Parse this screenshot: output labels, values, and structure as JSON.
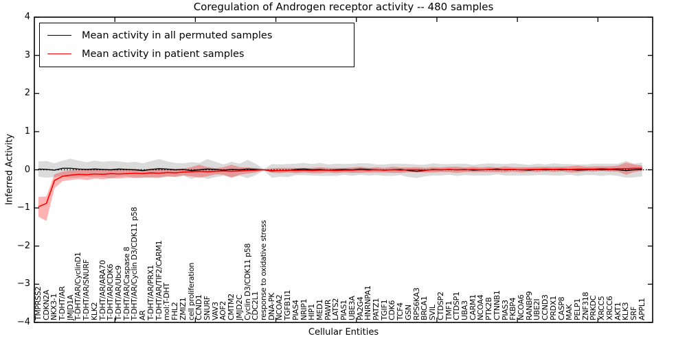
{
  "title": "Coregulation of Androgen receptor activity -- 480 samples",
  "axes": {
    "ylabel": "Inferred Activity",
    "xlabel": "Cellular Entities",
    "ytick_labels": [
      "4",
      "3",
      "2",
      "1",
      "0",
      "−1",
      "−2",
      "−3",
      "−4"
    ],
    "ytick_values": [
      4,
      3,
      2,
      1,
      0,
      -1,
      -2,
      -3,
      -4
    ]
  },
  "legend": {
    "items": [
      {
        "label": "Mean activity in all permuted samples",
        "color": "#000000"
      },
      {
        "label": "Mean activity in patient samples",
        "color": "#ff0000"
      }
    ]
  },
  "chart_data": {
    "type": "line",
    "title": "Coregulation of Androgen receptor activity -- 480 samples",
    "xlabel": "Cellular Entities",
    "ylabel": "Inferred Activity",
    "ylim": [
      -4,
      4
    ],
    "xlim": [
      0,
      76.8
    ],
    "grid": false,
    "legend_position": "upper left",
    "x_major_tick_values": [
      10,
      20,
      30,
      40,
      50,
      60,
      70
    ],
    "zero_line": {
      "style": "dotted",
      "color": "#000000",
      "y": 0
    },
    "band_colors": {
      "permuted": "rgba(0,0,0,0.14)",
      "patient": "rgba(255,0,0,0.30)"
    },
    "categories": [
      "TMPRSS2",
      "CDKN2A",
      "NKX3-1",
      "T-DHT/AR",
      "JMJD1A",
      "T-DHT/AR/CyclinD1",
      "T-DHT/AR/SNURF",
      "KLK2",
      "T-DHT/AR/ARA70",
      "T-DHT/AR/CDK6",
      "T-DHT/AR/Ubc9",
      "T-DHT/AR/Caspase 8",
      "T-DHT/AR/Cyclin D3/CDK11 p58",
      "AR",
      "T-DHT/AR/PRX1",
      "T-DHT/AR/TIF2/CARM1",
      "mol:T-DHT",
      "FHL2",
      "ZMIZ1",
      "cell proliferation",
      "CCND1",
      "SNURF",
      "VAV3",
      "AOF2",
      "CMTM2",
      "JMJD2C",
      "Cyclin D3/CDK11 p58",
      "CDC2L1",
      "response to oxidative stress",
      "DNA-PK",
      "NCOA2",
      "TGFB1I1",
      "PIAS4",
      "NRIP1",
      "HIP1",
      "MED1",
      "PAWR",
      "LATS2",
      "PIAS1",
      "UBE3A",
      "PA2G4",
      "HNRNPA1",
      "PATZ1",
      "TGIF1",
      "CDK6",
      "TCF4",
      "GSN",
      "RPS6KA3",
      "BRCA1",
      "SVIL",
      "CTDSP2",
      "TMF1",
      "CTDSP1",
      "UBA3",
      "CARM1",
      "NCOA4",
      "PTK2B",
      "CTNNB1",
      "PIAS3",
      "FKBP4",
      "NCOA6",
      "RANBP9",
      "UBE2I",
      "CCND3",
      "PRDX1",
      "CASP8",
      "MAK",
      "PELP1",
      "ZNF318",
      "PRKDC",
      "XRCC5",
      "XRCC6",
      "AKT1",
      "KLK3",
      "SRF",
      "APPL1"
    ],
    "series": [
      {
        "name": "Mean activity in all permuted samples",
        "color": "#000000",
        "values": [
          0.02,
          0.01,
          -0.01,
          0.04,
          0.04,
          0.02,
          0.01,
          0.02,
          0.01,
          0.0,
          0.02,
          0.01,
          0.0,
          -0.02,
          0.01,
          0.03,
          0.02,
          0.0,
          0.01,
          -0.02,
          0.0,
          0.02,
          0.01,
          -0.01,
          0.01,
          0.0,
          0.02,
          0.01,
          0.0,
          -0.03,
          -0.02,
          -0.02,
          0.01,
          0.02,
          0.0,
          0.01,
          -0.01,
          0.0,
          0.01,
          0.0,
          0.02,
          0.01,
          0.0,
          -0.01,
          0.0,
          0.01,
          -0.02,
          -0.04,
          -0.02,
          0.01,
          0.0,
          0.01,
          0.0,
          0.01,
          -0.01,
          0.0,
          0.01,
          0.02,
          0.0,
          0.01,
          0.0,
          -0.01,
          0.01,
          0.0,
          0.01,
          0.0,
          0.01,
          -0.01,
          0.0,
          0.01,
          0.0,
          0.01,
          0.0,
          -0.02,
          0.0,
          0.01
        ],
        "band_lower": [
          -0.18,
          -0.21,
          -0.19,
          -0.16,
          -0.21,
          -0.2,
          -0.18,
          -0.2,
          -0.19,
          -0.23,
          -0.18,
          -0.17,
          -0.21,
          -0.21,
          -0.21,
          -0.22,
          -0.18,
          -0.18,
          -0.15,
          -0.24,
          -0.18,
          -0.24,
          -0.19,
          -0.16,
          -0.19,
          -0.16,
          -0.22,
          -0.14,
          -0.02,
          -0.21,
          -0.18,
          -0.19,
          -0.14,
          -0.14,
          -0.15,
          -0.16,
          -0.16,
          -0.16,
          -0.13,
          -0.16,
          -0.13,
          -0.15,
          -0.14,
          -0.16,
          -0.16,
          -0.14,
          -0.19,
          -0.22,
          -0.17,
          -0.15,
          -0.15,
          -0.13,
          -0.16,
          -0.14,
          -0.15,
          -0.15,
          -0.15,
          -0.12,
          -0.15,
          -0.15,
          -0.15,
          -0.15,
          -0.14,
          -0.14,
          -0.15,
          -0.15,
          -0.13,
          -0.16,
          -0.14,
          -0.14,
          -0.16,
          -0.14,
          -0.16,
          -0.21,
          -0.2,
          -0.17
        ],
        "band_upper": [
          0.22,
          0.23,
          0.17,
          0.24,
          0.29,
          0.24,
          0.2,
          0.24,
          0.21,
          0.23,
          0.22,
          0.19,
          0.21,
          0.17,
          0.23,
          0.28,
          0.22,
          0.18,
          0.17,
          0.2,
          0.18,
          0.28,
          0.21,
          0.14,
          0.21,
          0.16,
          0.26,
          0.16,
          0.02,
          0.15,
          0.14,
          0.15,
          0.16,
          0.18,
          0.15,
          0.18,
          0.14,
          0.16,
          0.15,
          0.16,
          0.17,
          0.17,
          0.14,
          0.14,
          0.16,
          0.16,
          0.15,
          0.14,
          0.13,
          0.17,
          0.15,
          0.15,
          0.16,
          0.16,
          0.13,
          0.15,
          0.17,
          0.16,
          0.15,
          0.17,
          0.15,
          0.13,
          0.16,
          0.14,
          0.17,
          0.15,
          0.15,
          0.14,
          0.14,
          0.16,
          0.16,
          0.16,
          0.16,
          0.23,
          0.16,
          0.19
        ]
      },
      {
        "name": "Mean activity in patient samples",
        "color": "#ff0000",
        "values": [
          -0.97,
          -0.88,
          -0.28,
          -0.17,
          -0.14,
          -0.12,
          -0.13,
          -0.11,
          -0.12,
          -0.1,
          -0.11,
          -0.1,
          -0.09,
          -0.1,
          -0.08,
          -0.09,
          -0.07,
          -0.08,
          -0.06,
          -0.05,
          -0.04,
          -0.05,
          -0.04,
          -0.03,
          -0.04,
          -0.03,
          -0.02,
          -0.01,
          0.0,
          -0.02,
          -0.02,
          -0.01,
          -0.02,
          -0.01,
          -0.02,
          -0.01,
          -0.01,
          -0.02,
          -0.01,
          -0.01,
          0.0,
          -0.01,
          0.0,
          -0.01,
          0.0,
          -0.01,
          0.0,
          0.0,
          -0.01,
          0.0,
          0.0,
          0.01,
          0.0,
          0.0,
          0.01,
          0.0,
          0.01,
          0.0,
          0.01,
          0.01,
          0.0,
          0.01,
          0.01,
          0.02,
          0.01,
          0.02,
          0.01,
          0.02,
          0.02,
          0.02,
          0.03,
          0.02,
          0.03,
          0.03,
          0.04,
          0.04
        ],
        "band_lower": [
          -1.23,
          -1.34,
          -0.48,
          -0.3,
          -0.27,
          -0.24,
          -0.27,
          -0.23,
          -0.25,
          -0.22,
          -0.23,
          -0.21,
          -0.21,
          -0.2,
          -0.2,
          -0.2,
          -0.17,
          -0.19,
          -0.15,
          -0.17,
          -0.21,
          -0.17,
          -0.12,
          -0.13,
          -0.21,
          -0.13,
          -0.1,
          -0.07,
          -0.01,
          -0.08,
          -0.09,
          -0.07,
          -0.09,
          -0.07,
          -0.09,
          -0.09,
          -0.07,
          -0.09,
          -0.07,
          -0.08,
          -0.08,
          -0.07,
          -0.07,
          -0.07,
          -0.08,
          -0.08,
          -0.06,
          -0.07,
          -0.07,
          -0.07,
          -0.06,
          -0.06,
          -0.08,
          -0.06,
          -0.06,
          -0.06,
          -0.06,
          -0.06,
          -0.07,
          -0.05,
          -0.07,
          -0.05,
          -0.06,
          -0.04,
          -0.06,
          -0.04,
          -0.07,
          -0.07,
          -0.04,
          -0.05,
          -0.03,
          -0.05,
          -0.05,
          -0.13,
          -0.06,
          -0.03
        ],
        "band_upper": [
          -0.71,
          -0.7,
          -0.12,
          -0.05,
          -0.02,
          -0.01,
          0.0,
          0.01,
          0.0,
          0.01,
          0.01,
          0.01,
          0.02,
          0.0,
          0.03,
          0.02,
          0.03,
          0.02,
          0.03,
          0.07,
          0.13,
          0.07,
          0.04,
          0.07,
          0.13,
          0.07,
          0.06,
          0.05,
          0.01,
          0.04,
          0.05,
          0.05,
          0.05,
          0.05,
          0.05,
          0.07,
          0.05,
          0.05,
          0.05,
          0.06,
          0.08,
          0.05,
          0.07,
          0.05,
          0.08,
          0.06,
          0.06,
          0.07,
          0.05,
          0.07,
          0.06,
          0.08,
          0.08,
          0.06,
          0.08,
          0.06,
          0.08,
          0.06,
          0.09,
          0.07,
          0.07,
          0.07,
          0.08,
          0.08,
          0.08,
          0.08,
          0.09,
          0.11,
          0.08,
          0.09,
          0.09,
          0.09,
          0.11,
          0.19,
          0.14,
          0.11
        ]
      }
    ]
  }
}
